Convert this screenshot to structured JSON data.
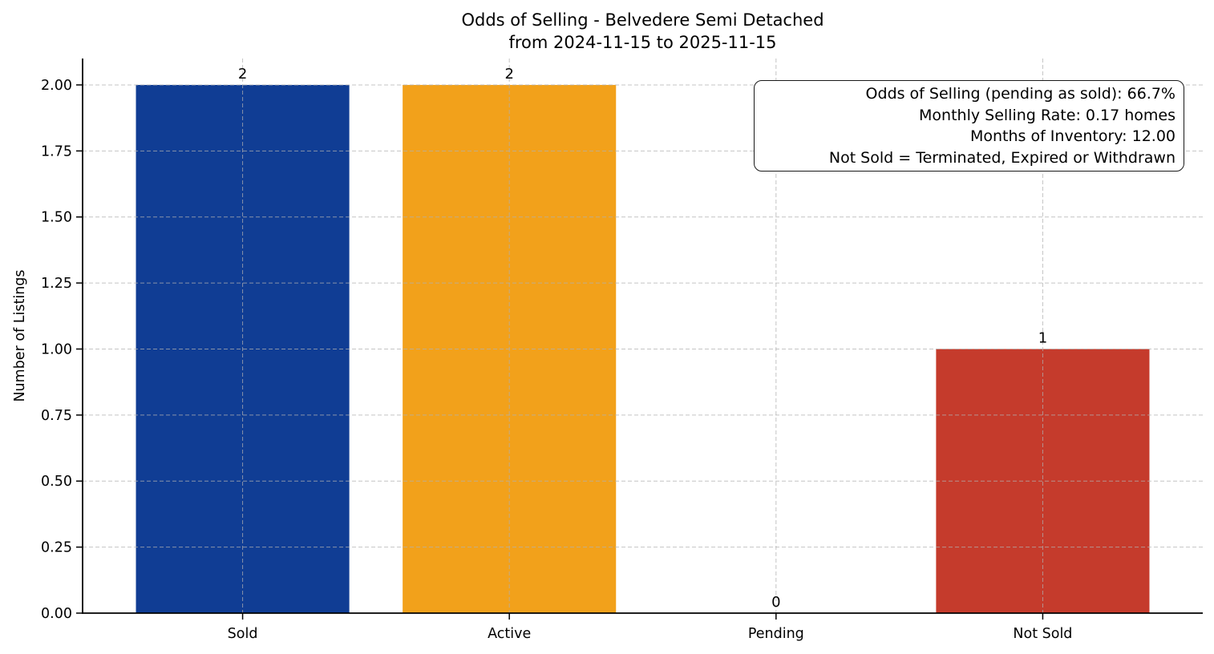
{
  "chart_data": {
    "type": "bar",
    "title_line1": "Odds of Selling - Belvedere Semi Detached",
    "title_line2": "from 2024-11-15 to 2025-11-15",
    "categories": [
      "Sold",
      "Active",
      "Pending",
      "Not Sold"
    ],
    "values": [
      2,
      2,
      0,
      1
    ],
    "bar_value_labels": [
      "2",
      "2",
      "0",
      "1"
    ],
    "bar_colors": [
      "#103d94",
      "#f2a11b",
      null,
      "#c53b2c"
    ],
    "xlabel": "",
    "ylabel": "Number of Listings",
    "ylim": [
      0,
      2.1
    ],
    "yticks": [
      0,
      0.25,
      0.5,
      0.75,
      1,
      1.25,
      1.5,
      1.75,
      2
    ],
    "ytick_labels": [
      "0.00",
      "0.25",
      "0.50",
      "0.75",
      "1.00",
      "1.25",
      "1.50",
      "1.75",
      "2.00"
    ],
    "grid": true,
    "grid_line_style": "dashed",
    "legend": "none",
    "annotation": {
      "lines": [
        "Odds of Selling (pending as sold): 66.7%",
        "Monthly Selling Rate: 0.17 homes",
        "Months of Inventory: 12.00",
        "Not Sold = Terminated, Expired or Withdrawn"
      ]
    },
    "stats": {
      "odds_of_selling_pending_as_sold_pct": "66.7%",
      "monthly_selling_rate": "0.17 homes",
      "months_of_inventory": "12.00",
      "not_sold_definition": "Terminated, Expired or Withdrawn"
    },
    "colors": {
      "sold_bar": "#103d94",
      "active_bar": "#f2a11b",
      "not_sold_bar": "#c53b2c",
      "gridline": "#b0b0b0",
      "axis": "#000000",
      "background": "#ffffff"
    }
  }
}
